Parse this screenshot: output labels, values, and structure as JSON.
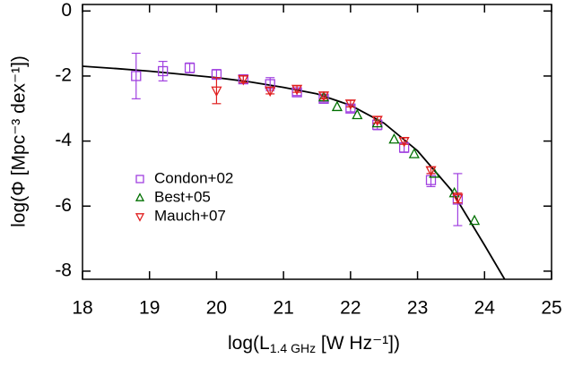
{
  "chart_data": {
    "type": "scatter",
    "xlabel": {
      "main": "log(L",
      "sub": "1.4 GHz",
      "rest": " [W Hz⁻¹])"
    },
    "ylabel": "log(Φ [Mpc⁻³ dex⁻¹])",
    "xlim": [
      18,
      25
    ],
    "ylim": [
      -8.25,
      0.2
    ],
    "xticks": [
      18,
      19,
      20,
      21,
      22,
      23,
      24,
      25
    ],
    "yticks": [
      0,
      -2,
      -4,
      -6,
      -8
    ],
    "legend": "middle-left",
    "series": [
      {
        "name": "Condon+02",
        "color": "#a040e0",
        "marker": "square",
        "x": [
          18.8,
          19.2,
          19.6,
          20.0,
          20.4,
          20.8,
          21.2,
          21.6,
          22.0,
          22.4,
          22.8,
          23.2,
          23.6
        ],
        "values": [
          -2.0,
          -1.85,
          -1.75,
          -1.95,
          -2.1,
          -2.25,
          -2.5,
          -2.7,
          -3.0,
          -3.5,
          -4.2,
          -5.2,
          -5.8
        ],
        "errors": [
          0.7,
          0.3,
          0.15,
          0.15,
          0.1,
          0.2,
          0.1,
          0.1,
          0.1,
          0.15,
          0.15,
          0.2,
          0.8
        ]
      },
      {
        "name": "Best+05",
        "color": "#007000",
        "marker": "triangle-up",
        "x": [
          21.6,
          21.8,
          22.1,
          22.4,
          22.65,
          22.95,
          23.25,
          23.55,
          23.85
        ],
        "values": [
          -2.65,
          -2.95,
          -3.2,
          -3.45,
          -3.95,
          -4.4,
          -5.0,
          -5.6,
          -6.45
        ]
      },
      {
        "name": "Mauch+07",
        "color": "#e02020",
        "marker": "triangle-down",
        "x": [
          20.0,
          20.4,
          20.8,
          21.2,
          21.6,
          22.0,
          22.4,
          22.8,
          23.2,
          23.6
        ],
        "values": [
          -2.45,
          -2.1,
          -2.45,
          -2.4,
          -2.6,
          -2.85,
          -3.35,
          -4.0,
          -4.9,
          -5.75
        ],
        "errors": [
          0.4,
          0.1,
          0.1,
          0.1,
          0.1,
          0.1,
          0.1,
          0.1,
          0.1,
          0.15
        ]
      }
    ],
    "fit": {
      "color": "#000000",
      "x": [
        18,
        18.5,
        19,
        19.5,
        20,
        20.5,
        21,
        21.5,
        22,
        22.5,
        23,
        23.5,
        24,
        24.3
      ],
      "values": [
        -1.7,
        -1.77,
        -1.85,
        -1.95,
        -2.05,
        -2.18,
        -2.35,
        -2.55,
        -2.9,
        -3.45,
        -4.3,
        -5.5,
        -7.2,
        -8.25
      ]
    }
  }
}
